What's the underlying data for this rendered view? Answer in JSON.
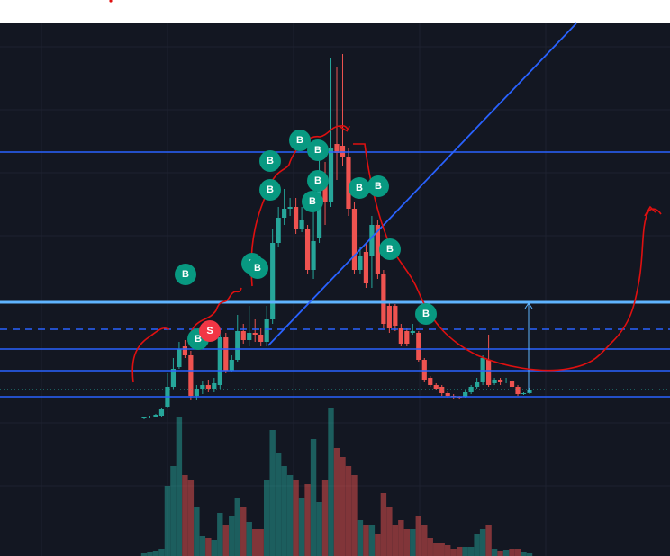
{
  "chart_data": {
    "type": "candlestick",
    "categories": [
      null,
      null,
      null,
      null,
      null,
      null,
      null,
      null,
      null,
      null,
      null,
      null,
      null,
      null,
      null,
      null,
      null,
      null,
      null,
      null,
      null,
      null,
      null,
      null,
      null,
      null,
      null,
      null,
      null,
      null,
      null,
      null,
      null,
      null,
      null,
      null,
      null,
      null,
      null,
      null,
      null,
      null,
      null,
      null,
      null,
      null,
      null,
      null,
      null,
      null,
      null,
      null,
      null,
      null,
      null,
      null,
      null,
      null,
      null,
      null,
      null,
      null,
      null,
      null,
      null,
      null,
      null
    ],
    "open": [
      -5,
      -4,
      -3,
      -2,
      8,
      30,
      52,
      75,
      65,
      20,
      28,
      32,
      28,
      32,
      85,
      48,
      60,
      92,
      82,
      90,
      88,
      80,
      105,
      190,
      218,
      228,
      230,
      205,
      205,
      160,
      195,
      260,
      235,
      300,
      298,
      285,
      228,
      160,
      180,
      175,
      210,
      155,
      120,
      120,
      95,
      92,
      90,
      90,
      60,
      40,
      32,
      30,
      23,
      20,
      19,
      19,
      24,
      30,
      35,
      60,
      34,
      38,
      36,
      36,
      30,
      22,
      23
    ],
    "high": [
      -4,
      -2,
      0,
      6,
      45,
      62,
      80,
      82,
      70,
      32,
      36,
      38,
      40,
      92,
      90,
      65,
      110,
      100,
      120,
      105,
      95,
      120,
      205,
      230,
      250,
      240,
      240,
      230,
      210,
      230,
      290,
      280,
      395,
      385,
      400,
      295,
      235,
      185,
      190,
      220,
      215,
      160,
      125,
      122,
      100,
      95,
      100,
      92,
      62,
      42,
      34,
      32,
      25,
      22,
      20,
      26,
      32,
      40,
      65,
      88,
      40,
      40,
      40,
      38,
      32,
      24,
      29
    ],
    "low": [
      -6,
      -5,
      -4,
      -3,
      7,
      28,
      50,
      62,
      15,
      15,
      22,
      24,
      24,
      28,
      45,
      46,
      58,
      78,
      75,
      80,
      75,
      75,
      100,
      185,
      210,
      220,
      200,
      202,
      155,
      150,
      190,
      210,
      230,
      260,
      275,
      220,
      155,
      155,
      140,
      140,
      150,
      95,
      90,
      92,
      75,
      75,
      88,
      58,
      35,
      30,
      26,
      20,
      18,
      16,
      17,
      18,
      22,
      28,
      32,
      30,
      32,
      32,
      34,
      28,
      20,
      21,
      22
    ],
    "close": [
      -4,
      -3,
      -1,
      5,
      30,
      50,
      72,
      65,
      20,
      28,
      32,
      28,
      34,
      85,
      48,
      60,
      92,
      82,
      90,
      88,
      80,
      105,
      190,
      218,
      228,
      230,
      205,
      215,
      160,
      192,
      260,
      235,
      295,
      290,
      285,
      228,
      160,
      175,
      145,
      210,
      155,
      100,
      95,
      98,
      78,
      78,
      92,
      60,
      38,
      32,
      28,
      23,
      20,
      19,
      18,
      24,
      30,
      35,
      62,
      32,
      38,
      35,
      37,
      30,
      22,
      23,
      27
    ],
    "volume": [
      3,
      4,
      6,
      8,
      78,
      100,
      155,
      90,
      85,
      55,
      22,
      20,
      18,
      48,
      35,
      45,
      65,
      55,
      38,
      30,
      30,
      85,
      140,
      115,
      100,
      90,
      85,
      65,
      80,
      130,
      60,
      85,
      165,
      120,
      110,
      100,
      90,
      40,
      35,
      35,
      25,
      70,
      55,
      35,
      40,
      30,
      30,
      45,
      35,
      20,
      15,
      15,
      12,
      8,
      10,
      10,
      10,
      25,
      30,
      35,
      8,
      6,
      7,
      8,
      8,
      5,
      3
    ],
    "ylim": [
      -158,
      434
    ],
    "vlim": [
      0,
      170
    ],
    "up_color": "#26a69a",
    "down_color": "#ef5350",
    "markers": [
      "B",
      "B",
      "S",
      "B",
      "B",
      "B",
      "B",
      "B",
      "B",
      "B",
      "B",
      "B",
      "B",
      "B",
      "B"
    ]
  }
}
